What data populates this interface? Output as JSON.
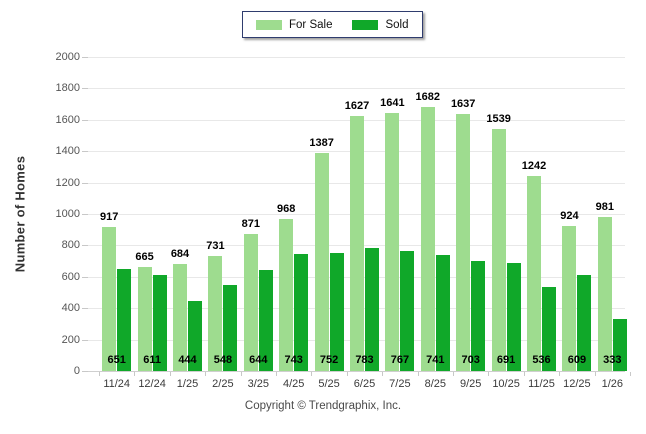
{
  "legend": {
    "items": [
      {
        "label": "For Sale",
        "color": "#9edc8f"
      },
      {
        "label": "Sold",
        "color": "#10a829"
      }
    ]
  },
  "chart_data": {
    "type": "bar",
    "categories": [
      "11/24",
      "12/24",
      "1/25",
      "2/25",
      "3/25",
      "4/25",
      "5/25",
      "6/25",
      "7/25",
      "8/25",
      "9/25",
      "10/25",
      "11/25",
      "12/25",
      "1/26"
    ],
    "series": [
      {
        "name": "For Sale",
        "color": "#9edc8f",
        "values": [
          917,
          665,
          684,
          731,
          871,
          968,
          1387,
          1627,
          1641,
          1682,
          1637,
          1539,
          1242,
          924,
          981
        ]
      },
      {
        "name": "Sold",
        "color": "#10a829",
        "values": [
          651,
          611,
          444,
          548,
          644,
          743,
          752,
          783,
          767,
          741,
          703,
          691,
          536,
          609,
          333
        ]
      }
    ],
    "title": "",
    "xlabel": "",
    "ylabel": "Number of Homes",
    "ylim": [
      0,
      2000
    ],
    "ytick_step": 200,
    "grid": true,
    "legend_position": "top-center",
    "value_labels": {
      "for_sale": "above bar",
      "sold": "inside bottom"
    }
  },
  "footer": {
    "copyright": "Copyright © Trendgraphix, Inc."
  }
}
